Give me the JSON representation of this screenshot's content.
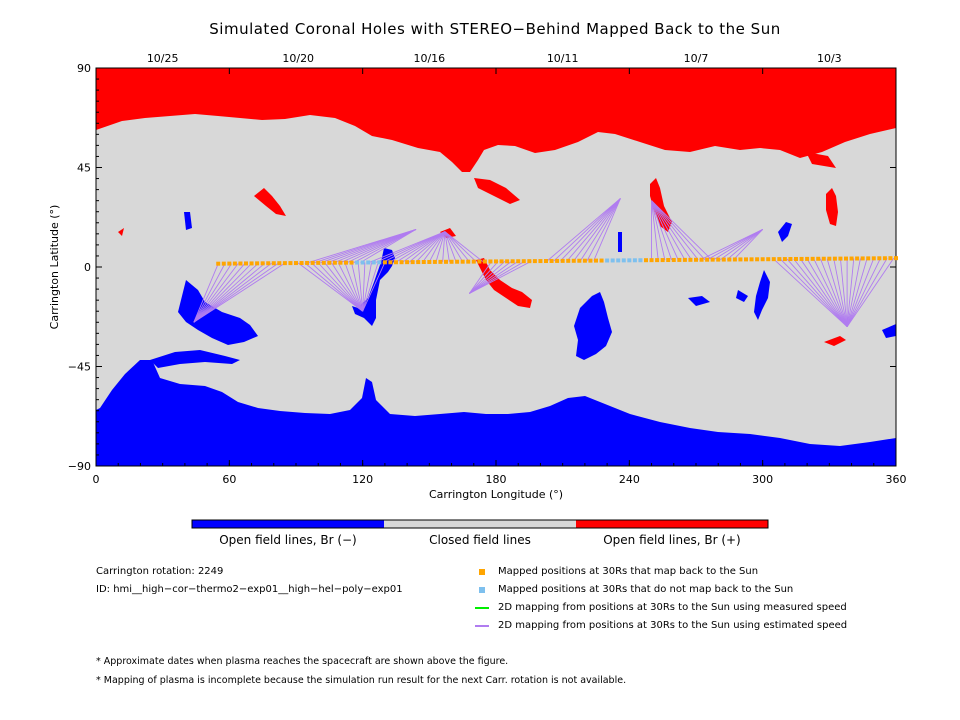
{
  "title": "Simulated Coronal Holes with STEREO−Behind Mapped Back to the Sun",
  "chart_data": {
    "type": "map",
    "title": "Simulated Coronal Holes with STEREO−Behind Mapped Back to the Sun",
    "xlabel": "Carrington Longitude (°)",
    "ylabel": "Carrington Latitude (°)",
    "xlim": [
      0,
      360
    ],
    "ylim": [
      -90,
      90
    ],
    "xticks": [
      "0",
      "60",
      "120",
      "180",
      "240",
      "300",
      "360"
    ],
    "yticks": [
      "90",
      "45",
      "0",
      "−45",
      "−90"
    ],
    "top_axis_dates": [
      {
        "label": "10/25",
        "lon": 30
      },
      {
        "label": "10/20",
        "lon": 91
      },
      {
        "label": "10/16",
        "lon": 150
      },
      {
        "label": "10/11",
        "lon": 210
      },
      {
        "label": "10/7",
        "lon": 270
      },
      {
        "label": "10/3",
        "lon": 330
      }
    ],
    "colors": {
      "open_negative": "#0000ff",
      "closed": "#d8d8d8",
      "open_positive": "#ff0000",
      "mapped": "#ffa500",
      "unmapped": "#7ec0ee",
      "measured_line": "#00ee00",
      "estimated_line": "#b07cf0"
    },
    "colorbar_labels": [
      "Open field lines, Br (−)",
      "Closed field lines",
      "Open field lines, Br (+)"
    ],
    "mapped_points": {
      "lon_start": 55,
      "lon_end": 360,
      "lat_start": 1.5,
      "lat_end": 4,
      "unmapped_lon_ranges": [
        [
          116,
          128
        ],
        [
          228,
          245
        ]
      ]
    },
    "mapping_fans": [
      {
        "target": [
          44,
          -25
        ],
        "from": [
          55,
          86
        ]
      },
      {
        "target": [
          120,
          -20
        ],
        "from": [
          91,
          130
        ]
      },
      {
        "target": [
          144,
          17
        ],
        "from": [
          95,
          120
        ]
      },
      {
        "target": [
          157,
          16
        ],
        "from": [
          123,
          176
        ]
      },
      {
        "target": [
          168,
          -12
        ],
        "from": [
          178,
          196
        ]
      },
      {
        "target": [
          236,
          31
        ],
        "from": [
          203,
          225
        ]
      },
      {
        "target": [
          250,
          30
        ],
        "from": [
          250,
          277
        ]
      },
      {
        "target": [
          300,
          17
        ],
        "from": [
          272,
          288
        ]
      },
      {
        "target": [
          338,
          -27
        ],
        "from": [
          305,
          360
        ]
      }
    ]
  },
  "info": {
    "rotation": "Carrington rotation: 2249",
    "id": "ID: hmi__high−cor−thermo2−exp01__high−hel−poly−exp01"
  },
  "legend": [
    {
      "label": "Mapped positions at 30Rs that map back to the Sun",
      "color": "#ffa500",
      "kind": "square"
    },
    {
      "label": "Mapped positions at 30Rs that do not map back to the Sun",
      "color": "#7ec0ee",
      "kind": "square"
    },
    {
      "label": "2D mapping from positions at 30Rs to the Sun using measured speed",
      "color": "#00ee00",
      "kind": "line"
    },
    {
      "label": "2D mapping from positions at 30Rs to the Sun using estimated speed",
      "color": "#b07cf0",
      "kind": "line"
    }
  ],
  "notes": [
    "* Approximate dates when plasma reaches the spacecraft are shown above the figure.",
    "* Mapping of plasma is incomplete because the simulation run result for the next Carr. rotation is not available."
  ]
}
